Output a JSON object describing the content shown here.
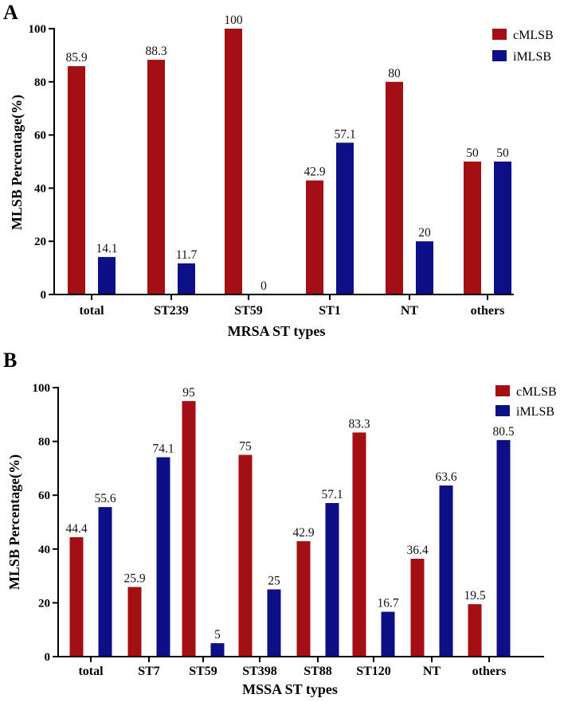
{
  "chart_data": [
    {
      "panel": "A",
      "type": "bar",
      "title": "",
      "xlabel": "MRSA ST types",
      "ylabel": "MLSB Percentage(%)",
      "ylim": [
        0,
        100
      ],
      "yticks": [
        0,
        20,
        40,
        60,
        80,
        100
      ],
      "legend_position": "top-right",
      "categories": [
        "total",
        "ST239",
        "ST59",
        "ST1",
        "NT",
        "others"
      ],
      "series": [
        {
          "name": "cMLSB",
          "color": "#a30f12",
          "values": [
            85.9,
            88.3,
            100,
            42.9,
            80,
            50
          ],
          "labels": [
            "85.9",
            "88.3",
            "100",
            "42.9",
            "80",
            "50"
          ]
        },
        {
          "name": "iMLSB",
          "color": "#0d0f86",
          "values": [
            14.1,
            11.7,
            0,
            57.1,
            20,
            50
          ],
          "labels": [
            "14.1",
            "11.7",
            "0",
            "57.1",
            "20",
            "50"
          ]
        }
      ]
    },
    {
      "panel": "B",
      "type": "bar",
      "title": "",
      "xlabel": "MSSA ST types",
      "ylabel": "MLSB Percentage(%)",
      "ylim": [
        0,
        100
      ],
      "yticks": [
        0,
        20,
        40,
        60,
        80,
        100
      ],
      "legend_position": "top-right",
      "categories": [
        "total",
        "ST7",
        "ST59",
        "ST398",
        "ST88",
        "ST120",
        "NT",
        "others"
      ],
      "series": [
        {
          "name": "cMLSB",
          "color": "#a30f12",
          "values": [
            44.4,
            25.9,
            95,
            75,
            42.9,
            83.3,
            36.4,
            19.5
          ],
          "labels": [
            "44.4",
            "25.9",
            "95",
            "75",
            "42.9",
            "83.3",
            "36.4",
            "19.5"
          ]
        },
        {
          "name": "iMLSB",
          "color": "#0d0f86",
          "values": [
            55.6,
            74.1,
            5,
            25,
            57.1,
            16.7,
            63.6,
            80.5
          ],
          "labels": [
            "55.6",
            "74.1",
            "5",
            "25",
            "57.1",
            "16.7",
            "63.6",
            "80.5"
          ]
        }
      ]
    }
  ]
}
